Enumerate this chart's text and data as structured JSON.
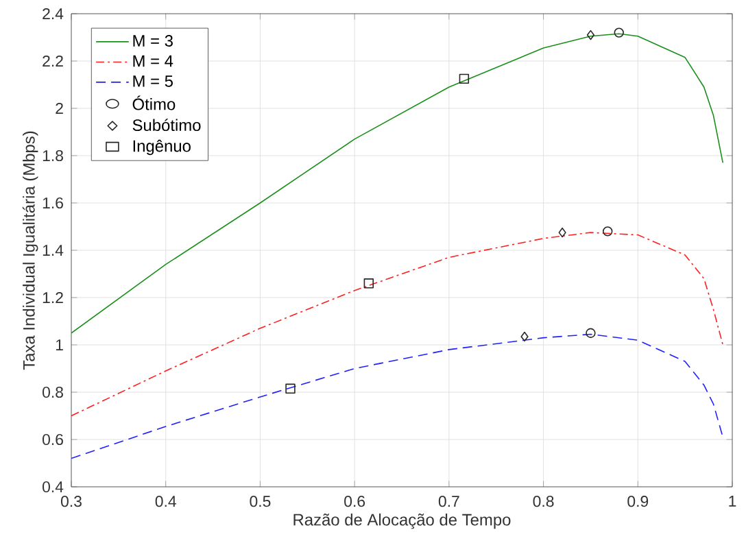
{
  "chart_data": {
    "type": "line",
    "xlabel": "Razão de Alocação de Tempo",
    "ylabel": "Taxa Individual Igualitária (Mbps)",
    "xlim": [
      0.3,
      1
    ],
    "ylim": [
      0.4,
      2.4
    ],
    "xticks": [
      0.3,
      0.4,
      0.5,
      0.6,
      0.7,
      0.8,
      0.9,
      1
    ],
    "yticks": [
      0.4,
      0.6,
      0.8,
      1,
      1.2,
      1.4,
      1.6,
      1.8,
      2,
      2.2,
      2.4
    ],
    "grid": true,
    "legend": "top left",
    "series": [
      {
        "name": "M = 3",
        "color": "#1a8f1a",
        "line_style": "solid",
        "marker": "none",
        "x": [
          0.3,
          0.4,
          0.5,
          0.6,
          0.7,
          0.8,
          0.85,
          0.88,
          0.9,
          0.95,
          0.97,
          0.98,
          0.99
        ],
        "values": [
          1.05,
          1.34,
          1.6,
          1.87,
          2.09,
          2.255,
          2.305,
          2.315,
          2.305,
          2.215,
          2.09,
          1.97,
          1.77
        ]
      },
      {
        "name": "M = 4",
        "color": "#ff1f1f",
        "line_style": "dashdot",
        "marker": "none",
        "x": [
          0.3,
          0.4,
          0.5,
          0.6,
          0.7,
          0.8,
          0.85,
          0.9,
          0.95,
          0.97,
          0.98,
          0.99
        ],
        "values": [
          0.7,
          0.89,
          1.07,
          1.23,
          1.37,
          1.45,
          1.475,
          1.465,
          1.38,
          1.28,
          1.15,
          1.0
        ]
      },
      {
        "name": "M = 5",
        "color": "#1f1fff",
        "line_style": "dashed",
        "marker": "none",
        "x": [
          0.3,
          0.4,
          0.5,
          0.6,
          0.7,
          0.8,
          0.85,
          0.9,
          0.95,
          0.97,
          0.98,
          0.99
        ],
        "values": [
          0.52,
          0.655,
          0.78,
          0.9,
          0.98,
          1.03,
          1.045,
          1.02,
          0.93,
          0.83,
          0.75,
          0.61
        ]
      },
      {
        "name": "Ótimo",
        "type": "scatter",
        "color": "#262626",
        "marker": "circle",
        "x": [
          0.88,
          0.868,
          0.85
        ],
        "values": [
          2.32,
          1.48,
          1.05
        ]
      },
      {
        "name": "Subótimo",
        "type": "scatter",
        "color": "#262626",
        "marker": "diamond",
        "x": [
          0.85,
          0.82,
          0.78
        ],
        "values": [
          2.31,
          1.475,
          1.035
        ]
      },
      {
        "name": "Ingênuo",
        "type": "scatter",
        "color": "#262626",
        "marker": "square",
        "x": [
          0.716,
          0.615,
          0.532
        ],
        "values": [
          2.125,
          1.26,
          0.815
        ]
      }
    ]
  }
}
